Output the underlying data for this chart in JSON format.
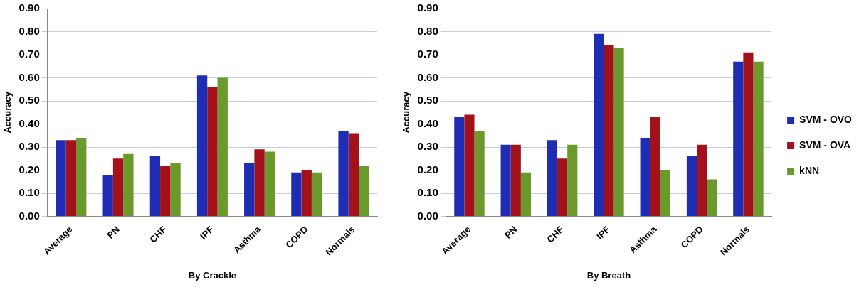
{
  "chart_data": [
    {
      "type": "bar",
      "xlabel": "By Crackle",
      "ylabel": "Accuracy",
      "categories": [
        "Average",
        "PN",
        "CHF",
        "IPF",
        "Asthma",
        "COPD",
        "Normals"
      ],
      "series": [
        {
          "color": "#1f2db4",
          "values": [
            0.33,
            0.18,
            0.26,
            0.61,
            0.23,
            0.19,
            0.37
          ]
        },
        {
          "color": "#a3121a",
          "values": [
            0.33,
            0.25,
            0.22,
            0.56,
            0.29,
            0.2,
            0.36
          ]
        },
        {
          "color": "#6b9a2c",
          "values": [
            0.34,
            0.27,
            0.23,
            0.6,
            0.28,
            0.19,
            0.22
          ]
        }
      ],
      "ylim": [
        0,
        0.9
      ],
      "yticks": [
        {
          "value": 0,
          "label": "0.00"
        },
        {
          "value": 0.1,
          "label": "0.10"
        },
        {
          "value": 0.2,
          "label": "0.20"
        },
        {
          "value": 0.3,
          "label": "0.30"
        },
        {
          "value": 0.4,
          "label": "0.40"
        },
        {
          "value": 0.5,
          "label": "0.50"
        },
        {
          "value": 0.6,
          "label": "0.60"
        },
        {
          "value": 0.7,
          "label": "0.70"
        },
        {
          "value": 0.8,
          "label": "0.80"
        },
        {
          "value": 0.9,
          "label": "0.90"
        }
      ],
      "grid": "y",
      "legend": false
    },
    {
      "type": "bar",
      "xlabel": "By Breath",
      "ylabel": "Accuracy",
      "categories": [
        "Average",
        "PN",
        "CHF",
        "IPF",
        "Asthma",
        "COPD",
        "Normals"
      ],
      "series": [
        {
          "name": "SVM - OVO",
          "color": "#1f2db4",
          "values": [
            0.43,
            0.31,
            0.33,
            0.79,
            0.34,
            0.26,
            0.67
          ]
        },
        {
          "name": "SVM - OVA",
          "color": "#a3121a",
          "values": [
            0.44,
            0.31,
            0.25,
            0.74,
            0.43,
            0.31,
            0.71
          ]
        },
        {
          "name": "kNN",
          "color": "#6b9a2c",
          "values": [
            0.37,
            0.19,
            0.31,
            0.73,
            0.2,
            0.16,
            0.67
          ]
        }
      ],
      "ylim": [
        0,
        0.9
      ],
      "yticks": [
        {
          "value": 0,
          "label": "0.00"
        },
        {
          "value": 0.1,
          "label": "0.10"
        },
        {
          "value": 0.2,
          "label": "0.20"
        },
        {
          "value": 0.3,
          "label": "0.30"
        },
        {
          "value": 0.4,
          "label": "0.40"
        },
        {
          "value": 0.5,
          "label": "0.50"
        },
        {
          "value": 0.6,
          "label": "0.60"
        },
        {
          "value": 0.7,
          "label": "0.70"
        },
        {
          "value": 0.8,
          "label": "0.80"
        },
        {
          "value": 0.9,
          "label": "0.90"
        }
      ],
      "grid": "y",
      "legend": "right"
    }
  ]
}
